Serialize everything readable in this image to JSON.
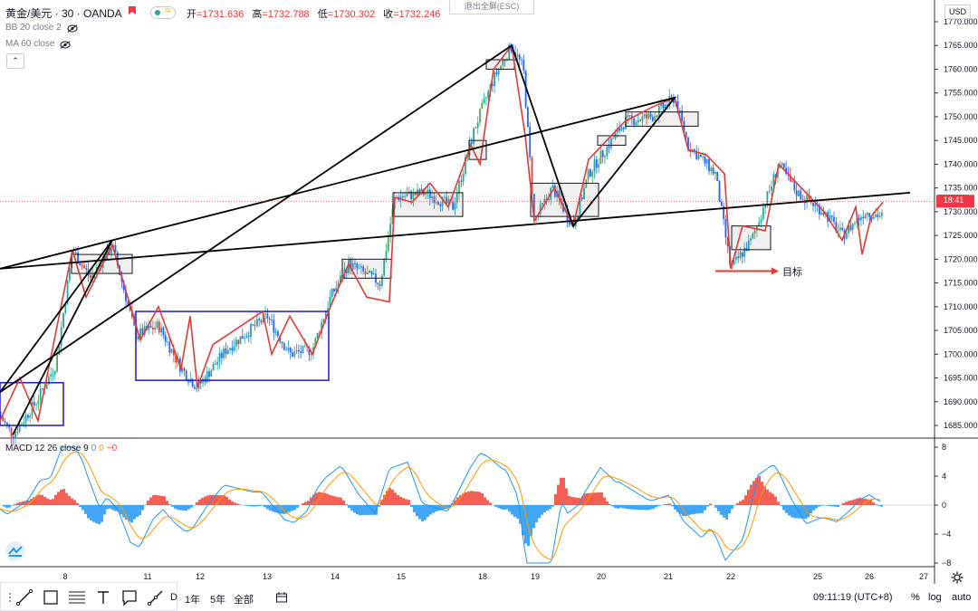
{
  "header": {
    "symbol": "黄金/美元 · 30 · OANDA",
    "ohlc": [
      {
        "label": "开",
        "value": "=1731.636"
      },
      {
        "label": "高",
        "value": "=1732.788"
      },
      {
        "label": "低",
        "value": "=1730.302"
      },
      {
        "label": "收",
        "value": "=1732.246"
      }
    ]
  },
  "indicators": {
    "bb": "BB 20 close 2",
    "ma": "MA 60 close",
    "macd_label": "MACD 12 26 close 9",
    "macd_v1": "0",
    "macd_v2": "0",
    "macd_v3": "−0"
  },
  "fullscreen_exit": "退出全屏(ESC)",
  "currency": "USD",
  "countdown": "18:41",
  "annotation_target": "目标",
  "price_axis": [
    "1770.000",
    "1765.000",
    "1760.000",
    "1755.000",
    "1750.000",
    "1745.000",
    "1740.000",
    "1735.000",
    "1730.000",
    "1725.000",
    "1720.000",
    "1715.000",
    "1710.000",
    "1705.000",
    "1700.000",
    "1695.000",
    "1690.000",
    "1685.000"
  ],
  "macd_axis": [
    "8",
    "4",
    "0",
    "−4",
    "−8"
  ],
  "time_axis": [
    "8",
    "11",
    "12",
    "13",
    "14",
    "15",
    "18",
    "19",
    "20",
    "21",
    "22",
    "25",
    "26",
    "27"
  ],
  "bottom": {
    "range_d": "D",
    "range_1y": "1年",
    "range_5y": "5年",
    "range_all": "全部",
    "clock": "09:11:19 (UTC+8)",
    "percent": "%",
    "log": "log",
    "auto": "auto"
  },
  "colors": {
    "up": "#26a69a",
    "down": "#2962ff",
    "zigzag_red": "#e53935",
    "zigzag_black": "#000000",
    "box_blue": "#1a1ad6",
    "macd_pos": "#f44336",
    "macd_neg": "#2196f3"
  },
  "chart_data": {
    "type": "candlestick",
    "ylim": [
      1682,
      1772
    ],
    "x_ticks": [
      "8",
      "11",
      "12",
      "13",
      "14",
      "15",
      "18",
      "19",
      "20",
      "21",
      "22",
      "25",
      "26",
      "27"
    ],
    "black_zigzag": [
      {
        "x": "7.7",
        "y": 1683
      },
      {
        "x": "10.7",
        "y": 1724
      },
      {
        "x": "12.0",
        "y": 1692
      },
      {
        "x": "18.6",
        "y": 1765
      },
      {
        "x": "19.6",
        "y": 1727
      },
      {
        "x": "21.1",
        "y": 1754
      },
      {
        "x": "22.0",
        "y": 1718
      },
      {
        "x": "26.4",
        "y": 1734
      }
    ],
    "macd_ylim": [
      -9,
      9
    ]
  }
}
